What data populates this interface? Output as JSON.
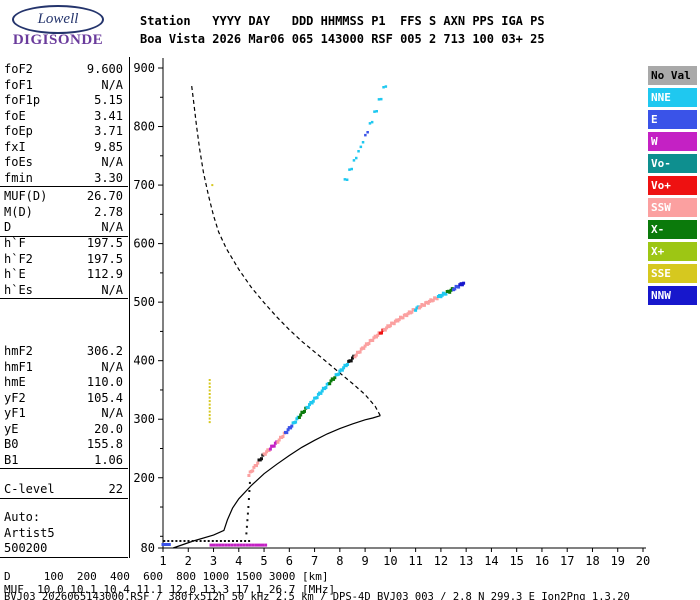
{
  "logo": {
    "name": "Lowell",
    "product": "DIGISONDE"
  },
  "header": {
    "line1": "Station   YYYY DAY   DDD HHMMSS P1  FFS S AXN PPS IGA PS",
    "line2": "Boa Vista 2026 Mar06 065 143000 RSF 005 2 713 100 03+ 25"
  },
  "parameters": {
    "groups": [
      {
        "rows": [
          {
            "label": "foF2",
            "value": "9.600"
          },
          {
            "label": "foF1",
            "value": "N/A"
          },
          {
            "label": "foF1p",
            "value": "5.15"
          },
          {
            "label": "foE",
            "value": "3.41"
          },
          {
            "label": "foEp",
            "value": "3.71"
          },
          {
            "label": "fxI",
            "value": "9.85"
          },
          {
            "label": "foEs",
            "value": "N/A"
          },
          {
            "label": "fmin",
            "value": "3.30"
          }
        ]
      },
      {
        "rows": [
          {
            "label": "MUF(D)",
            "value": "26.70"
          },
          {
            "label": "M(D)",
            "value": "2.78"
          },
          {
            "label": "D",
            "value": "N/A"
          }
        ]
      },
      {
        "rows": [
          {
            "label": "h`F",
            "value": "197.5"
          },
          {
            "label": "h`F2",
            "value": "197.5"
          },
          {
            "label": "h`E",
            "value": "112.9"
          },
          {
            "label": "h`Es",
            "value": "N/A"
          }
        ]
      },
      {
        "rows": [
          {
            "label": "hmF2",
            "value": "306.2"
          },
          {
            "label": "hmF1",
            "value": "N/A"
          },
          {
            "label": "hmE",
            "value": "110.0"
          },
          {
            "label": "yF2",
            "value": "105.4"
          },
          {
            "label": "yF1",
            "value": "N/A"
          },
          {
            "label": "yE",
            "value": "20.0"
          },
          {
            "label": "B0",
            "value": "155.8"
          },
          {
            "label": "B1",
            "value": "1.06"
          }
        ]
      },
      {
        "rows": [
          {
            "label": "C-level",
            "value": "22"
          }
        ]
      },
      {
        "rows": [
          {
            "label": "Auto:",
            "value": ""
          },
          {
            "label": "Artist5",
            "value": ""
          },
          {
            "label": "500200",
            "value": ""
          }
        ]
      }
    ]
  },
  "colors": {
    "NoVal": "#A9A9A9",
    "NNE": "#1FC8F0",
    "E": "#3A53E8",
    "W": "#C421C4",
    "Vo-": "#0E8F8F",
    "Vo+": "#EE1111",
    "SSW": "#FBA0A0",
    "X-": "#0B7A0B",
    "X+": "#9DC614",
    "SSE": "#D6C81F",
    "NNW": "#1717CC",
    "black": "#111111"
  },
  "legend": {
    "items": [
      {
        "label": "No Val",
        "key": "NoVal",
        "fg": "#000000"
      },
      {
        "label": "NNE",
        "key": "NNE",
        "fg": "#FFFFFF"
      },
      {
        "label": "E",
        "key": "E",
        "fg": "#FFFFFF"
      },
      {
        "label": "W",
        "key": "W",
        "fg": "#FFFFFF"
      },
      {
        "label": "Vo-",
        "key": "Vo-",
        "fg": "#FFFFFF"
      },
      {
        "label": "Vo+",
        "key": "Vo+",
        "fg": "#FFFFFF"
      },
      {
        "label": "SSW",
        "key": "SSW",
        "fg": "#FFFFFF"
      },
      {
        "label": "X-",
        "key": "X-",
        "fg": "#FFFFFF"
      },
      {
        "label": "X+",
        "key": "X+",
        "fg": "#FFFFFF"
      },
      {
        "label": "SSE",
        "key": "SSE",
        "fg": "#FFFFFF"
      },
      {
        "label": "NNW",
        "key": "NNW",
        "fg": "#FFFFFF"
      }
    ]
  },
  "footer": {
    "d_label": "D",
    "distances_km": [
      "100",
      "200",
      "400",
      "600",
      "800",
      "1000",
      "1500",
      "3000"
    ],
    "d_unit": "[km]",
    "muf_label": "MUF",
    "muf_mhz": [
      "10.0",
      "10.1",
      "10.4",
      "11.1",
      "12.0",
      "13.3",
      "17.1",
      "26.7"
    ],
    "muf_unit": "[MHz]",
    "status": "BVJ03_2026065143000.RSF / 380fx512h 50 kHz 2.5 km / DPS-4D BVJ03 003 / 2.8 N 299.3 E Ion2Png 1.3.20"
  },
  "chart_data": {
    "type": "scatter",
    "title": "",
    "xlabel": "",
    "ylabel": "",
    "xlim": [
      1,
      20
    ],
    "ylim": [
      80,
      900
    ],
    "x_ticks": [
      1,
      2,
      3,
      4,
      5,
      6,
      7,
      8,
      9,
      10,
      11,
      12,
      13,
      14,
      15,
      16,
      17,
      18,
      19,
      20
    ],
    "y_tick_labels": [
      900,
      800,
      700,
      600,
      500,
      400,
      300,
      200,
      80
    ],
    "y_minor_ticks": [
      850,
      750,
      650,
      550,
      450,
      350,
      250,
      150,
      100
    ],
    "grid": false,
    "legend_position": "right",
    "profiles": {
      "bottomside_solid": [
        [
          1.4,
          80
        ],
        [
          2.2,
          92
        ],
        [
          3.0,
          102
        ],
        [
          3.41,
          110
        ],
        [
          3.55,
          128
        ],
        [
          3.75,
          148
        ],
        [
          4.0,
          164
        ],
        [
          4.5,
          187
        ],
        [
          5.0,
          207
        ],
        [
          5.5,
          223
        ],
        [
          6.0,
          238
        ],
        [
          6.5,
          252
        ],
        [
          7.0,
          264
        ],
        [
          7.5,
          275
        ],
        [
          8.0,
          284
        ],
        [
          8.5,
          292
        ],
        [
          9.0,
          299
        ],
        [
          9.3,
          302
        ],
        [
          9.6,
          306
        ]
      ],
      "topside_dashed": [
        [
          9.6,
          306
        ],
        [
          9.4,
          322
        ],
        [
          9.0,
          342
        ],
        [
          8.5,
          361
        ],
        [
          8.0,
          379
        ],
        [
          7.5,
          397
        ],
        [
          7.0,
          415
        ],
        [
          6.5,
          433
        ],
        [
          6.0,
          453
        ],
        [
          5.5,
          475
        ],
        [
          5.0,
          499
        ],
        [
          4.5,
          525
        ],
        [
          4.0,
          556
        ],
        [
          3.5,
          592
        ],
        [
          3.2,
          620
        ],
        [
          3.0,
          648
        ],
        [
          2.8,
          682
        ],
        [
          2.6,
          722
        ],
        [
          2.45,
          762
        ],
        [
          2.33,
          800
        ],
        [
          2.22,
          840
        ],
        [
          2.13,
          872
        ]
      ]
    },
    "traces": [
      {
        "name": "f-region-echo",
        "step": 0.05,
        "size": 3,
        "jitter": 2,
        "knots": [
          [
            4.4,
            205
          ],
          [
            5.0,
            240
          ],
          [
            5.5,
            260
          ],
          [
            6.0,
            284
          ],
          [
            6.5,
            310
          ],
          [
            7.0,
            334
          ],
          [
            7.5,
            358
          ],
          [
            8.0,
            381
          ],
          [
            8.5,
            404
          ],
          [
            9.0,
            425
          ],
          [
            9.5,
            444
          ],
          [
            10.0,
            461
          ],
          [
            10.5,
            475
          ],
          [
            11.0,
            488
          ],
          [
            11.5,
            500
          ],
          [
            12.0,
            511
          ],
          [
            12.4,
            520
          ],
          [
            12.95,
            534
          ]
        ],
        "color_ranges": [
          {
            "from": 4.4,
            "to": 4.75,
            "color": "SSW"
          },
          {
            "from": 4.75,
            "to": 4.95,
            "color": "black"
          },
          {
            "from": 4.95,
            "to": 5.2,
            "color": "SSW"
          },
          {
            "from": 5.2,
            "to": 5.5,
            "color": "W"
          },
          {
            "from": 5.5,
            "to": 5.8,
            "color": "SSW"
          },
          {
            "from": 5.8,
            "to": 6.1,
            "color": "E"
          },
          {
            "from": 6.1,
            "to": 6.35,
            "color": "NNE"
          },
          {
            "from": 6.35,
            "to": 6.65,
            "color": "X-"
          },
          {
            "from": 6.65,
            "to": 7.55,
            "color": "NNE"
          },
          {
            "from": 7.55,
            "to": 7.8,
            "color": "X-"
          },
          {
            "from": 7.8,
            "to": 8.3,
            "color": "NNE"
          },
          {
            "from": 8.3,
            "to": 8.55,
            "color": "black"
          },
          {
            "from": 8.55,
            "to": 9.6,
            "color": "SSW"
          },
          {
            "from": 9.6,
            "to": 9.75,
            "color": "Vo+"
          },
          {
            "from": 9.75,
            "to": 11.0,
            "color": "SSW"
          },
          {
            "from": 11.0,
            "to": 11.15,
            "color": "NNE"
          },
          {
            "from": 11.15,
            "to": 11.9,
            "color": "SSW"
          },
          {
            "from": 11.9,
            "to": 12.25,
            "color": "NNE"
          },
          {
            "from": 12.25,
            "to": 12.5,
            "color": "X-"
          },
          {
            "from": 12.5,
            "to": 12.75,
            "color": "E"
          },
          {
            "from": 12.75,
            "to": 12.95,
            "color": "NNW"
          }
        ]
      },
      {
        "name": "second-hop-echo",
        "step": 0.09,
        "size": 2.5,
        "jitter": 5,
        "knots": [
          [
            8.2,
            705
          ],
          [
            8.9,
            772
          ],
          [
            9.4,
            824
          ],
          [
            9.9,
            882
          ]
        ],
        "color_ranges": [
          {
            "from": 8.2,
            "to": 9.0,
            "color": "NNE"
          },
          {
            "from": 9.0,
            "to": 9.15,
            "color": "E"
          },
          {
            "from": 9.15,
            "to": 9.9,
            "color": "NNE"
          }
        ]
      },
      {
        "name": "valley-riser",
        "step": 0.02,
        "size": 2,
        "jitter": 0,
        "knots": [
          [
            4.3,
            105
          ],
          [
            4.38,
            150
          ],
          [
            4.45,
            198
          ]
        ],
        "color_ranges": [
          {
            "from": 4.3,
            "to": 4.45,
            "color": "black"
          }
        ]
      },
      {
        "name": "noise-row-magenta",
        "step": 0.12,
        "size": 3,
        "jitter": 0,
        "knots": [
          [
            2.9,
            85
          ],
          [
            5.15,
            85
          ]
        ],
        "color_ranges": [
          {
            "from": 2.9,
            "to": 5.15,
            "color": "W"
          }
        ]
      },
      {
        "name": "noise-row-black",
        "step": 0.16,
        "size": 2,
        "jitter": 0,
        "knots": [
          [
            1.05,
            92
          ],
          [
            4.5,
            92
          ]
        ],
        "color_ranges": [
          {
            "from": 1.05,
            "to": 4.5,
            "color": "black"
          }
        ]
      },
      {
        "name": "noise-blue-dash",
        "step": 0.05,
        "size": 3,
        "jitter": 0,
        "knots": [
          [
            1.0,
            86
          ],
          [
            1.3,
            86
          ]
        ],
        "color_ranges": [
          {
            "from": 1.0,
            "to": 1.3,
            "color": "E"
          }
        ]
      },
      {
        "name": "interference-sse",
        "vertical": true,
        "freq": 2.85,
        "h_range": [
          295,
          372
        ],
        "step_km": 6,
        "size": 2,
        "color": "SSE"
      },
      {
        "name": "sse-speck",
        "points": [
          [
            2.95,
            700
          ]
        ],
        "color": "SSE",
        "size": 2
      }
    ]
  }
}
